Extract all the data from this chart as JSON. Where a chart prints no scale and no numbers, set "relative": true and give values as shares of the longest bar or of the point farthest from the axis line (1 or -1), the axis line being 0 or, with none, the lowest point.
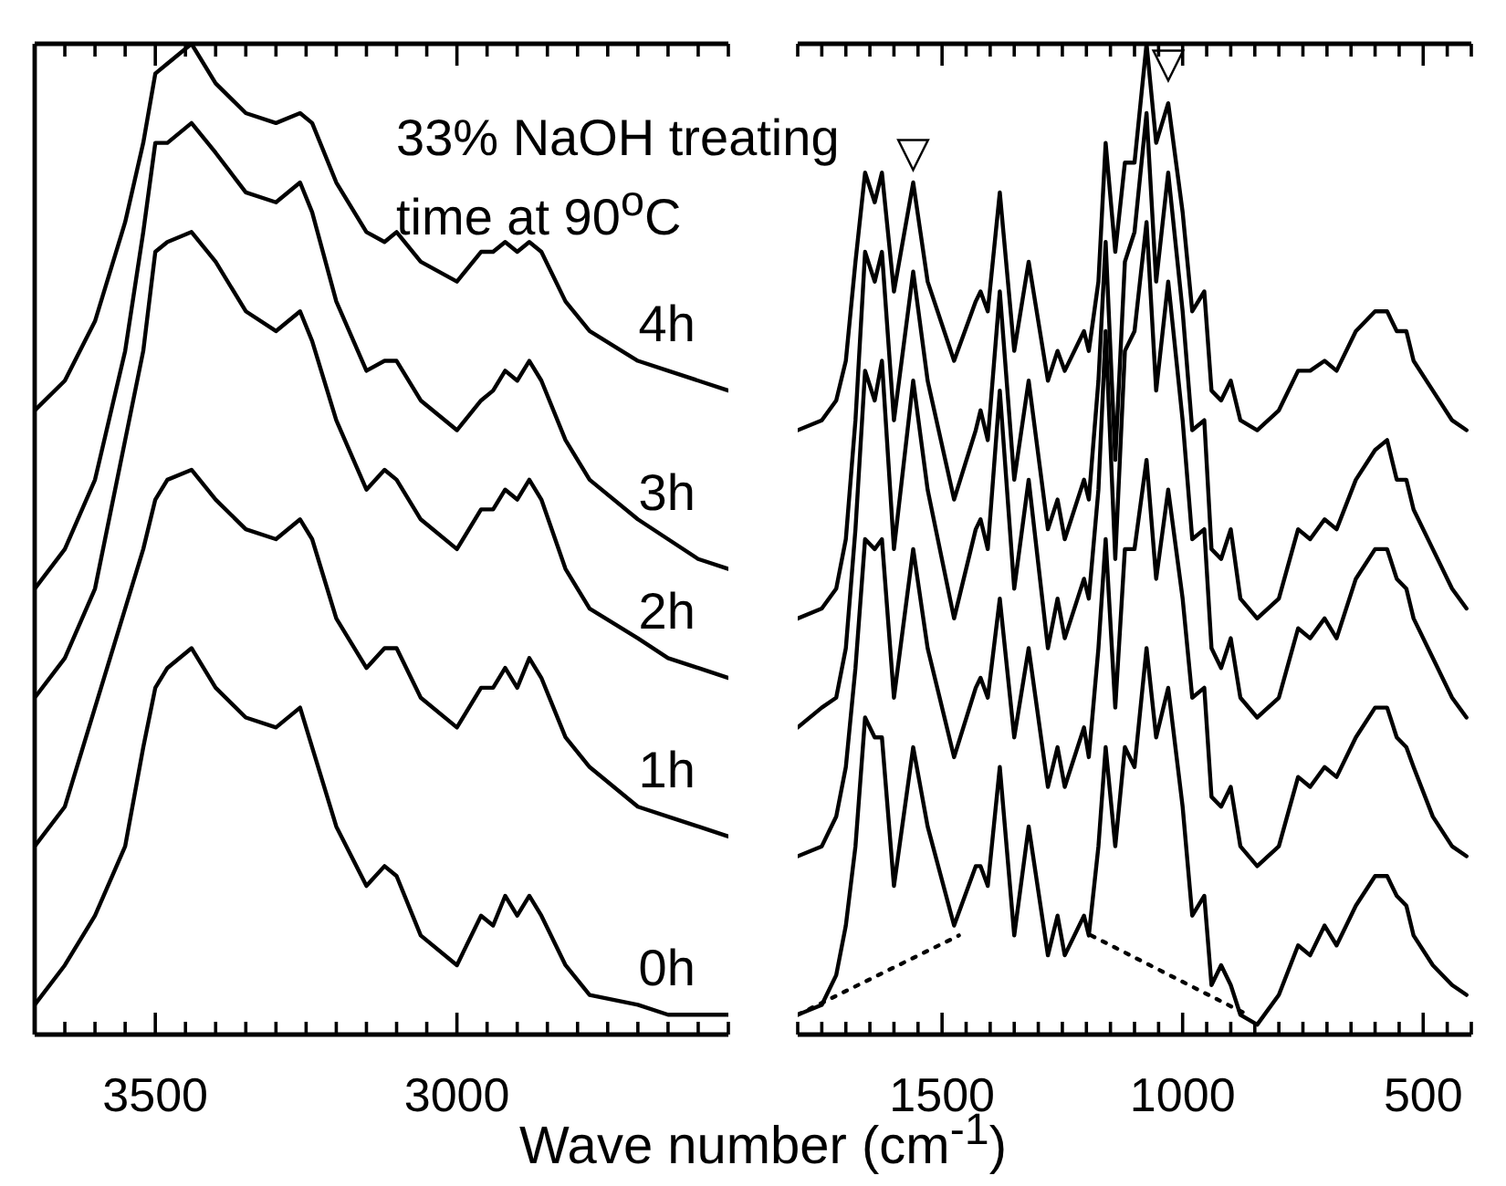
{
  "chart_data": [
    {
      "type": "line",
      "relative": true,
      "xlabel": "Wave number (cm$^{-1}$)",
      "annotations": [
        "33% NaOH treating time at 90$^{o}$C"
      ],
      "x": [
        3700,
        3650,
        3600,
        3550,
        3520,
        3500,
        3480,
        3440,
        3400,
        3350,
        3300,
        3260,
        3240,
        3200,
        3150,
        3120,
        3100,
        3060,
        3000,
        2960,
        2940,
        2920,
        2900,
        2880,
        2860,
        2820,
        2780,
        2700,
        2650,
        2600,
        2550
      ],
      "xlim": [
        3700,
        2550
      ],
      "xticks": [
        {
          "value": 3700,
          "label": null
        },
        {
          "value": 3650,
          "label": null
        },
        {
          "value": 3600,
          "label": null
        },
        {
          "value": 3550,
          "label": null
        },
        3500,
        {
          "value": 3450,
          "label": null
        },
        {
          "value": 3400,
          "label": null
        },
        {
          "value": 3350,
          "label": null
        },
        {
          "value": 3300,
          "label": null
        },
        {
          "value": 3250,
          "label": null
        },
        {
          "value": 3200,
          "label": null
        },
        {
          "value": 3150,
          "label": null
        },
        {
          "value": 3100,
          "label": null
        },
        {
          "value": 3050,
          "label": null
        },
        3000,
        {
          "value": 2950,
          "label": null
        },
        {
          "value": 2900,
          "label": null
        },
        {
          "value": 2850,
          "label": null
        },
        {
          "value": 2800,
          "label": null
        },
        {
          "value": 2750,
          "label": null
        },
        {
          "value": 2700,
          "label": null
        },
        {
          "value": 2650,
          "label": null
        },
        {
          "value": 2600,
          "label": null
        },
        {
          "value": 2550,
          "label": null
        }
      ],
      "series": [
        {
          "name": "0h",
          "color": "#000000",
          "values": [
            0.03,
            0.07,
            0.12,
            0.19,
            0.29,
            0.35,
            0.37,
            0.39,
            0.35,
            0.32,
            0.31,
            0.33,
            0.29,
            0.21,
            0.15,
            0.17,
            0.16,
            0.1,
            0.07,
            0.12,
            0.11,
            0.14,
            0.12,
            0.14,
            0.12,
            0.07,
            0.04,
            0.03,
            0.02,
            0.02,
            0.02
          ]
        },
        {
          "name": "1h",
          "color": "#000000",
          "values": [
            0.19,
            0.23,
            0.33,
            0.43,
            0.49,
            0.54,
            0.56,
            0.57,
            0.54,
            0.51,
            0.5,
            0.52,
            0.5,
            0.42,
            0.37,
            0.39,
            0.39,
            0.34,
            0.31,
            0.35,
            0.35,
            0.37,
            0.35,
            0.38,
            0.36,
            0.3,
            0.27,
            0.23,
            0.22,
            0.21,
            0.2
          ]
        },
        {
          "name": "2h",
          "color": "#000000",
          "values": [
            0.34,
            0.38,
            0.45,
            0.6,
            0.69,
            0.79,
            0.8,
            0.81,
            0.78,
            0.73,
            0.71,
            0.73,
            0.7,
            0.62,
            0.55,
            0.57,
            0.56,
            0.52,
            0.49,
            0.53,
            0.53,
            0.55,
            0.54,
            0.56,
            0.54,
            0.47,
            0.43,
            0.4,
            0.38,
            0.37,
            0.36
          ]
        },
        {
          "name": "3h",
          "color": "#000000",
          "values": [
            0.45,
            0.49,
            0.56,
            0.69,
            0.81,
            0.9,
            0.9,
            0.92,
            0.89,
            0.85,
            0.84,
            0.86,
            0.83,
            0.74,
            0.67,
            0.68,
            0.68,
            0.64,
            0.61,
            0.64,
            0.65,
            0.67,
            0.66,
            0.68,
            0.66,
            0.6,
            0.56,
            0.52,
            0.5,
            0.48,
            0.47
          ]
        },
        {
          "name": "4h",
          "color": "#000000",
          "values": [
            0.63,
            0.66,
            0.72,
            0.82,
            0.9,
            0.97,
            0.98,
            1.0,
            0.96,
            0.93,
            0.92,
            0.93,
            0.92,
            0.86,
            0.81,
            0.8,
            0.81,
            0.78,
            0.76,
            0.79,
            0.79,
            0.8,
            0.79,
            0.8,
            0.79,
            0.74,
            0.71,
            0.68,
            0.67,
            0.66,
            0.65
          ]
        }
      ]
    },
    {
      "type": "line",
      "relative": true,
      "annotations": [
        {
          "text": "▽",
          "x": 1560,
          "y": 0.86
        },
        {
          "text": "▽",
          "x": 1030,
          "y": 0.95
        }
      ],
      "x": [
        1800,
        1750,
        1720,
        1700,
        1680,
        1660,
        1640,
        1625,
        1600,
        1560,
        1530,
        1475,
        1430,
        1420,
        1405,
        1380,
        1350,
        1320,
        1280,
        1260,
        1245,
        1205,
        1195,
        1175,
        1160,
        1140,
        1120,
        1100,
        1075,
        1055,
        1030,
        1000,
        980,
        955,
        940,
        920,
        900,
        880,
        845,
        800,
        760,
        735,
        705,
        680,
        640,
        600,
        575,
        555,
        535,
        520,
        480,
        440,
        410
      ],
      "xlim": [
        1800,
        400
      ],
      "xticks": [
        {
          "value": 1800,
          "label": null
        },
        {
          "value": 1750,
          "label": null
        },
        {
          "value": 1700,
          "label": null
        },
        {
          "value": 1650,
          "label": null
        },
        {
          "value": 1600,
          "label": null
        },
        {
          "value": 1550,
          "label": null
        },
        1500,
        {
          "value": 1450,
          "label": null
        },
        {
          "value": 1400,
          "label": null
        },
        {
          "value": 1350,
          "label": null
        },
        {
          "value": 1300,
          "label": null
        },
        {
          "value": 1250,
          "label": null
        },
        {
          "value": 1200,
          "label": null
        },
        {
          "value": 1150,
          "label": null
        },
        {
          "value": 1100,
          "label": null
        },
        {
          "value": 1050,
          "label": null
        },
        1000,
        {
          "value": 950,
          "label": null
        },
        {
          "value": 900,
          "label": null
        },
        {
          "value": 850,
          "label": null
        },
        {
          "value": 800,
          "label": null
        },
        {
          "value": 750,
          "label": null
        },
        {
          "value": 700,
          "label": null
        },
        {
          "value": 650,
          "label": null
        },
        {
          "value": 600,
          "label": null
        },
        {
          "value": 550,
          "label": null
        },
        500,
        {
          "value": 450,
          "label": null
        },
        {
          "value": 400,
          "label": null
        }
      ],
      "series": [
        {
          "color": "#000000",
          "values": [
            0.02,
            0.03,
            0.06,
            0.11,
            0.19,
            0.32,
            0.3,
            0.3,
            0.15,
            0.29,
            0.21,
            0.11,
            0.17,
            0.17,
            0.15,
            0.27,
            0.1,
            0.21,
            0.08,
            0.12,
            0.08,
            0.12,
            0.1,
            0.19,
            0.29,
            0.19,
            0.29,
            0.27,
            0.39,
            0.3,
            0.35,
            0.23,
            0.12,
            0.14,
            0.05,
            0.07,
            0.05,
            0.02,
            0.01,
            0.04,
            0.09,
            0.08,
            0.11,
            0.09,
            0.13,
            0.16,
            0.16,
            0.14,
            0.13,
            0.1,
            0.07,
            0.05,
            0.04
          ]
        },
        {
          "color": "#000000",
          "values": [
            0.18,
            0.19,
            0.22,
            0.27,
            0.37,
            0.5,
            0.49,
            0.5,
            0.34,
            0.49,
            0.39,
            0.28,
            0.35,
            0.36,
            0.34,
            0.44,
            0.3,
            0.39,
            0.25,
            0.29,
            0.25,
            0.31,
            0.28,
            0.39,
            0.5,
            0.33,
            0.49,
            0.49,
            0.58,
            0.46,
            0.55,
            0.44,
            0.34,
            0.35,
            0.24,
            0.23,
            0.25,
            0.19,
            0.17,
            0.19,
            0.26,
            0.25,
            0.27,
            0.26,
            0.3,
            0.33,
            0.33,
            0.3,
            0.29,
            0.27,
            0.22,
            0.19,
            0.18
          ]
        },
        {
          "color": "#000000",
          "values": [
            0.31,
            0.33,
            0.34,
            0.39,
            0.51,
            0.67,
            0.64,
            0.68,
            0.49,
            0.66,
            0.55,
            0.42,
            0.51,
            0.52,
            0.49,
            0.65,
            0.45,
            0.56,
            0.39,
            0.44,
            0.4,
            0.46,
            0.44,
            0.55,
            0.71,
            0.48,
            0.69,
            0.71,
            0.82,
            0.65,
            0.76,
            0.62,
            0.5,
            0.51,
            0.39,
            0.37,
            0.4,
            0.34,
            0.32,
            0.34,
            0.41,
            0.4,
            0.42,
            0.4,
            0.46,
            0.49,
            0.49,
            0.46,
            0.45,
            0.42,
            0.38,
            0.34,
            0.32
          ]
        },
        {
          "color": "#000000",
          "values": [
            0.42,
            0.43,
            0.45,
            0.5,
            0.62,
            0.79,
            0.76,
            0.79,
            0.62,
            0.77,
            0.66,
            0.54,
            0.61,
            0.63,
            0.6,
            0.75,
            0.56,
            0.66,
            0.51,
            0.54,
            0.5,
            0.56,
            0.54,
            0.66,
            0.8,
            0.58,
            0.78,
            0.81,
            0.93,
            0.76,
            0.87,
            0.73,
            0.61,
            0.62,
            0.49,
            0.48,
            0.51,
            0.44,
            0.42,
            0.44,
            0.51,
            0.5,
            0.52,
            0.51,
            0.56,
            0.59,
            0.6,
            0.56,
            0.56,
            0.53,
            0.49,
            0.45,
            0.43
          ]
        },
        {
          "color": "#000000",
          "values": [
            0.61,
            0.62,
            0.64,
            0.68,
            0.78,
            0.87,
            0.84,
            0.87,
            0.75,
            0.86,
            0.76,
            0.68,
            0.74,
            0.75,
            0.73,
            0.85,
            0.69,
            0.78,
            0.66,
            0.69,
            0.67,
            0.71,
            0.69,
            0.76,
            0.9,
            0.79,
            0.88,
            0.88,
            1.0,
            0.9,
            0.94,
            0.83,
            0.73,
            0.75,
            0.65,
            0.64,
            0.66,
            0.62,
            0.61,
            0.63,
            0.67,
            0.67,
            0.68,
            0.67,
            0.71,
            0.73,
            0.73,
            0.71,
            0.71,
            0.68,
            0.65,
            0.62,
            0.61
          ]
        },
        {
          "type": "line",
          "color": "#000000",
          "line_style": "dotted",
          "x": [
            1800,
            1465,
            1330,
            1190,
            865
          ],
          "values": [
            0.02,
            0.1,
            null,
            0.1,
            0.02
          ]
        }
      ]
    }
  ]
}
